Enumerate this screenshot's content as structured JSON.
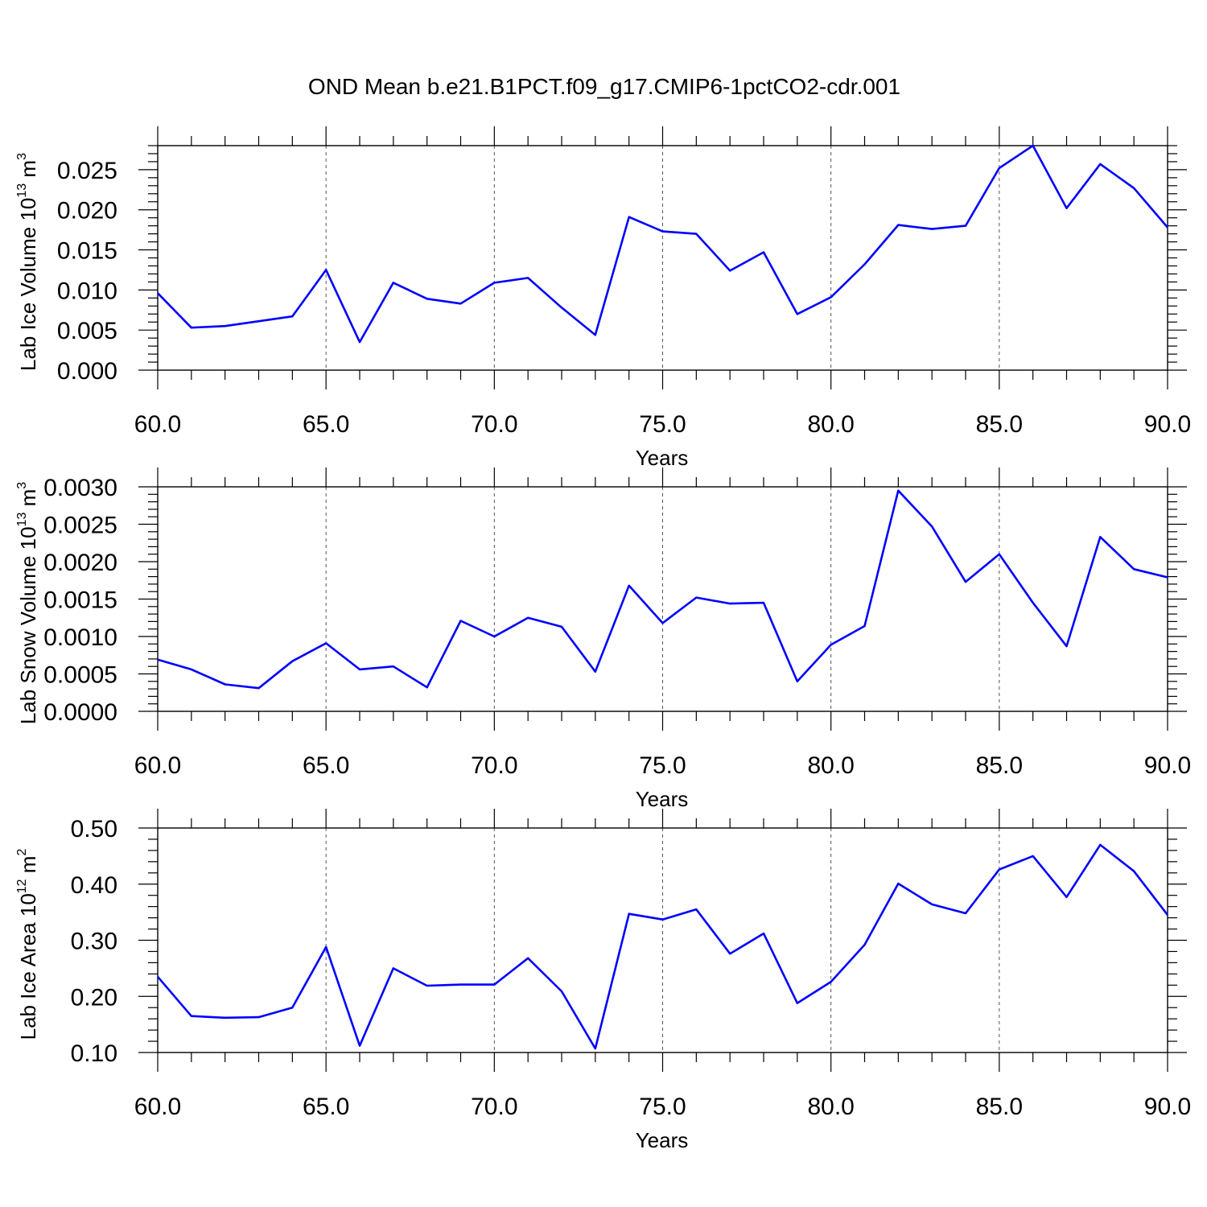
{
  "page_title": "OND Mean b.e21.B1PCT.f09_g17.CMIP6-1pctCO2-cdr.001",
  "colors": {
    "line": "#0000ff",
    "axis": "#000000",
    "grid": "#555555"
  },
  "chart_data": [
    {
      "type": "line",
      "id": "ice-volume",
      "xlabel": "Years",
      "ylabel": {
        "base": "Lab Ice Volume 10",
        "exp": "13",
        "unit": " m",
        "unit_exp": "3"
      },
      "xlim": [
        60,
        90
      ],
      "ylim": [
        0,
        0.028
      ],
      "xticks": [
        60,
        65,
        70,
        75,
        80,
        85,
        90
      ],
      "xtick_labels": [
        "60.0",
        "65.0",
        "70.0",
        "75.0",
        "80.0",
        "85.0",
        "90.0"
      ],
      "yticks": [
        0,
        0.005,
        0.01,
        0.015,
        0.02,
        0.025
      ],
      "ytick_labels": [
        "0.000",
        "0.005",
        "0.010",
        "0.015",
        "0.020",
        "0.025"
      ],
      "x": [
        60,
        61,
        62,
        63,
        64,
        65,
        66,
        67,
        68,
        69,
        70,
        71,
        72,
        73,
        74,
        75,
        76,
        77,
        78,
        79,
        80,
        81,
        82,
        83,
        84,
        85,
        86,
        87,
        88,
        89,
        90
      ],
      "values": [
        0.0096,
        0.0053,
        0.0055,
        0.0061,
        0.0067,
        0.0125,
        0.0035,
        0.0109,
        0.0089,
        0.0083,
        0.0109,
        0.0115,
        0.0078,
        0.0044,
        0.0191,
        0.0173,
        0.017,
        0.0124,
        0.0147,
        0.007,
        0.0091,
        0.0132,
        0.0181,
        0.0176,
        0.018,
        0.0252,
        0.028,
        0.0202,
        0.0257,
        0.0227,
        0.0178
      ]
    },
    {
      "type": "line",
      "id": "snow-volume",
      "xlabel": "Years",
      "ylabel": {
        "base": "Lab Snow Volume 10",
        "exp": "13",
        "unit": " m",
        "unit_exp": "3"
      },
      "xlim": [
        60,
        90
      ],
      "ylim": [
        0,
        0.003
      ],
      "xticks": [
        60,
        65,
        70,
        75,
        80,
        85,
        90
      ],
      "xtick_labels": [
        "60.0",
        "65.0",
        "70.0",
        "75.0",
        "80.0",
        "85.0",
        "90.0"
      ],
      "yticks": [
        0,
        0.0005,
        0.001,
        0.0015,
        0.002,
        0.0025,
        0.003
      ],
      "ytick_labels": [
        "0.0000",
        "0.0005",
        "0.0010",
        "0.0015",
        "0.0020",
        "0.0025",
        "0.0030"
      ],
      "x": [
        60,
        61,
        62,
        63,
        64,
        65,
        66,
        67,
        68,
        69,
        70,
        71,
        72,
        73,
        74,
        75,
        76,
        77,
        78,
        79,
        80,
        81,
        82,
        83,
        84,
        85,
        86,
        87,
        88,
        89,
        90
      ],
      "values": [
        0.00069,
        0.00056,
        0.00036,
        0.00031,
        0.00067,
        0.00091,
        0.00056,
        0.0006,
        0.00032,
        0.00121,
        0.001,
        0.00125,
        0.00113,
        0.00053,
        0.00168,
        0.00118,
        0.00152,
        0.00144,
        0.00145,
        0.0004,
        0.00089,
        0.00114,
        0.00295,
        0.00247,
        0.00173,
        0.0021,
        0.00145,
        0.00087,
        0.00233,
        0.0019,
        0.00179
      ]
    },
    {
      "type": "line",
      "id": "ice-area",
      "xlabel": "Years",
      "ylabel": {
        "base": "Lab Ice Area 10",
        "exp": "12",
        "unit": " m",
        "unit_exp": "2"
      },
      "xlim": [
        60,
        90
      ],
      "ylim": [
        0.1,
        0.5
      ],
      "xticks": [
        60,
        65,
        70,
        75,
        80,
        85,
        90
      ],
      "xtick_labels": [
        "60.0",
        "65.0",
        "70.0",
        "75.0",
        "80.0",
        "85.0",
        "90.0"
      ],
      "yticks": [
        0.1,
        0.2,
        0.3,
        0.4,
        0.5
      ],
      "ytick_labels": [
        "0.10",
        "0.20",
        "0.30",
        "0.40",
        "0.50"
      ],
      "x": [
        60,
        61,
        62,
        63,
        64,
        65,
        66,
        67,
        68,
        69,
        70,
        71,
        72,
        73,
        74,
        75,
        76,
        77,
        78,
        79,
        80,
        81,
        82,
        83,
        84,
        85,
        86,
        87,
        88,
        89,
        90
      ],
      "values": [
        0.235,
        0.165,
        0.162,
        0.163,
        0.18,
        0.288,
        0.112,
        0.25,
        0.219,
        0.221,
        0.221,
        0.268,
        0.209,
        0.107,
        0.347,
        0.337,
        0.355,
        0.276,
        0.312,
        0.188,
        0.226,
        0.292,
        0.401,
        0.364,
        0.348,
        0.426,
        0.45,
        0.377,
        0.47,
        0.423,
        0.345
      ]
    }
  ]
}
